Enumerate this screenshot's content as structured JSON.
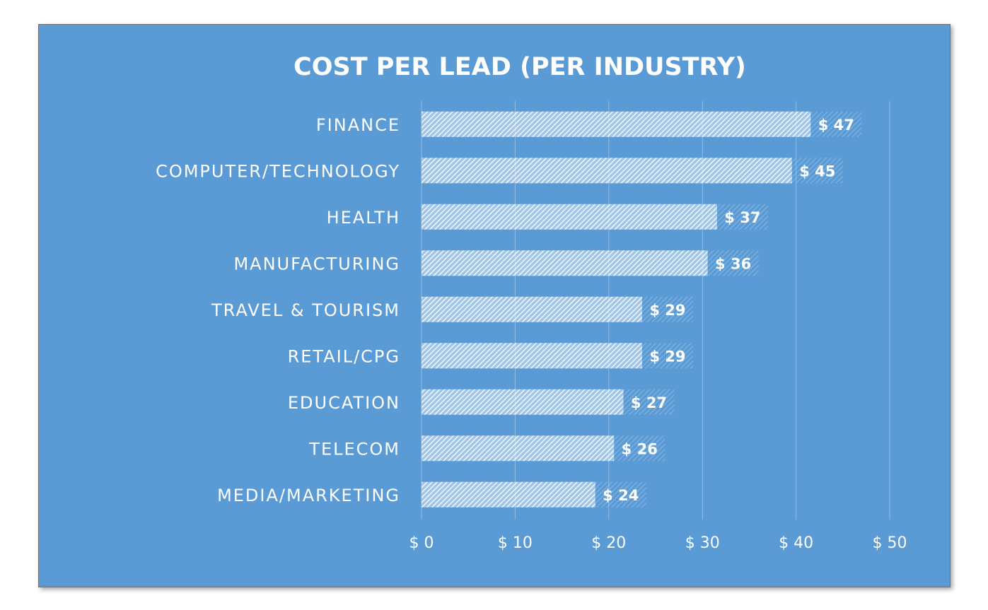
{
  "colors": {
    "background": "#5b9bd5",
    "bar_fill": "#ffffff",
    "gridline": "#8fbbe4",
    "text": "#ffffff"
  },
  "chart_data": {
    "type": "bar",
    "orientation": "horizontal",
    "title": "COST PER LEAD (PER INDUSTRY)",
    "xlabel": "",
    "ylabel": "",
    "categories": [
      "FINANCE",
      "COMPUTER/TECHNOLOGY",
      "HEALTH",
      "MANUFACTURING",
      "TRAVEL & TOURISM",
      "RETAIL/CPG",
      "EDUCATION",
      "TELECOM",
      "MEDIA/MARKETING"
    ],
    "values": [
      47,
      45,
      37,
      36,
      29,
      29,
      27,
      26,
      24
    ],
    "data_labels": [
      "$ 47",
      "$ 45",
      "$ 37",
      "$ 36",
      "$ 29",
      "$ 29",
      "$ 27",
      "$ 26",
      "$ 24"
    ],
    "xlim": [
      0,
      50
    ],
    "x_ticks": [
      0,
      10,
      20,
      30,
      40,
      50
    ],
    "x_tick_labels": [
      "$ 0",
      "$ 10",
      "$ 20",
      "$ 30",
      "$ 40",
      "$ 50"
    ],
    "grid": true,
    "legend": "none",
    "bar_pattern": "diagonal-hatch"
  }
}
